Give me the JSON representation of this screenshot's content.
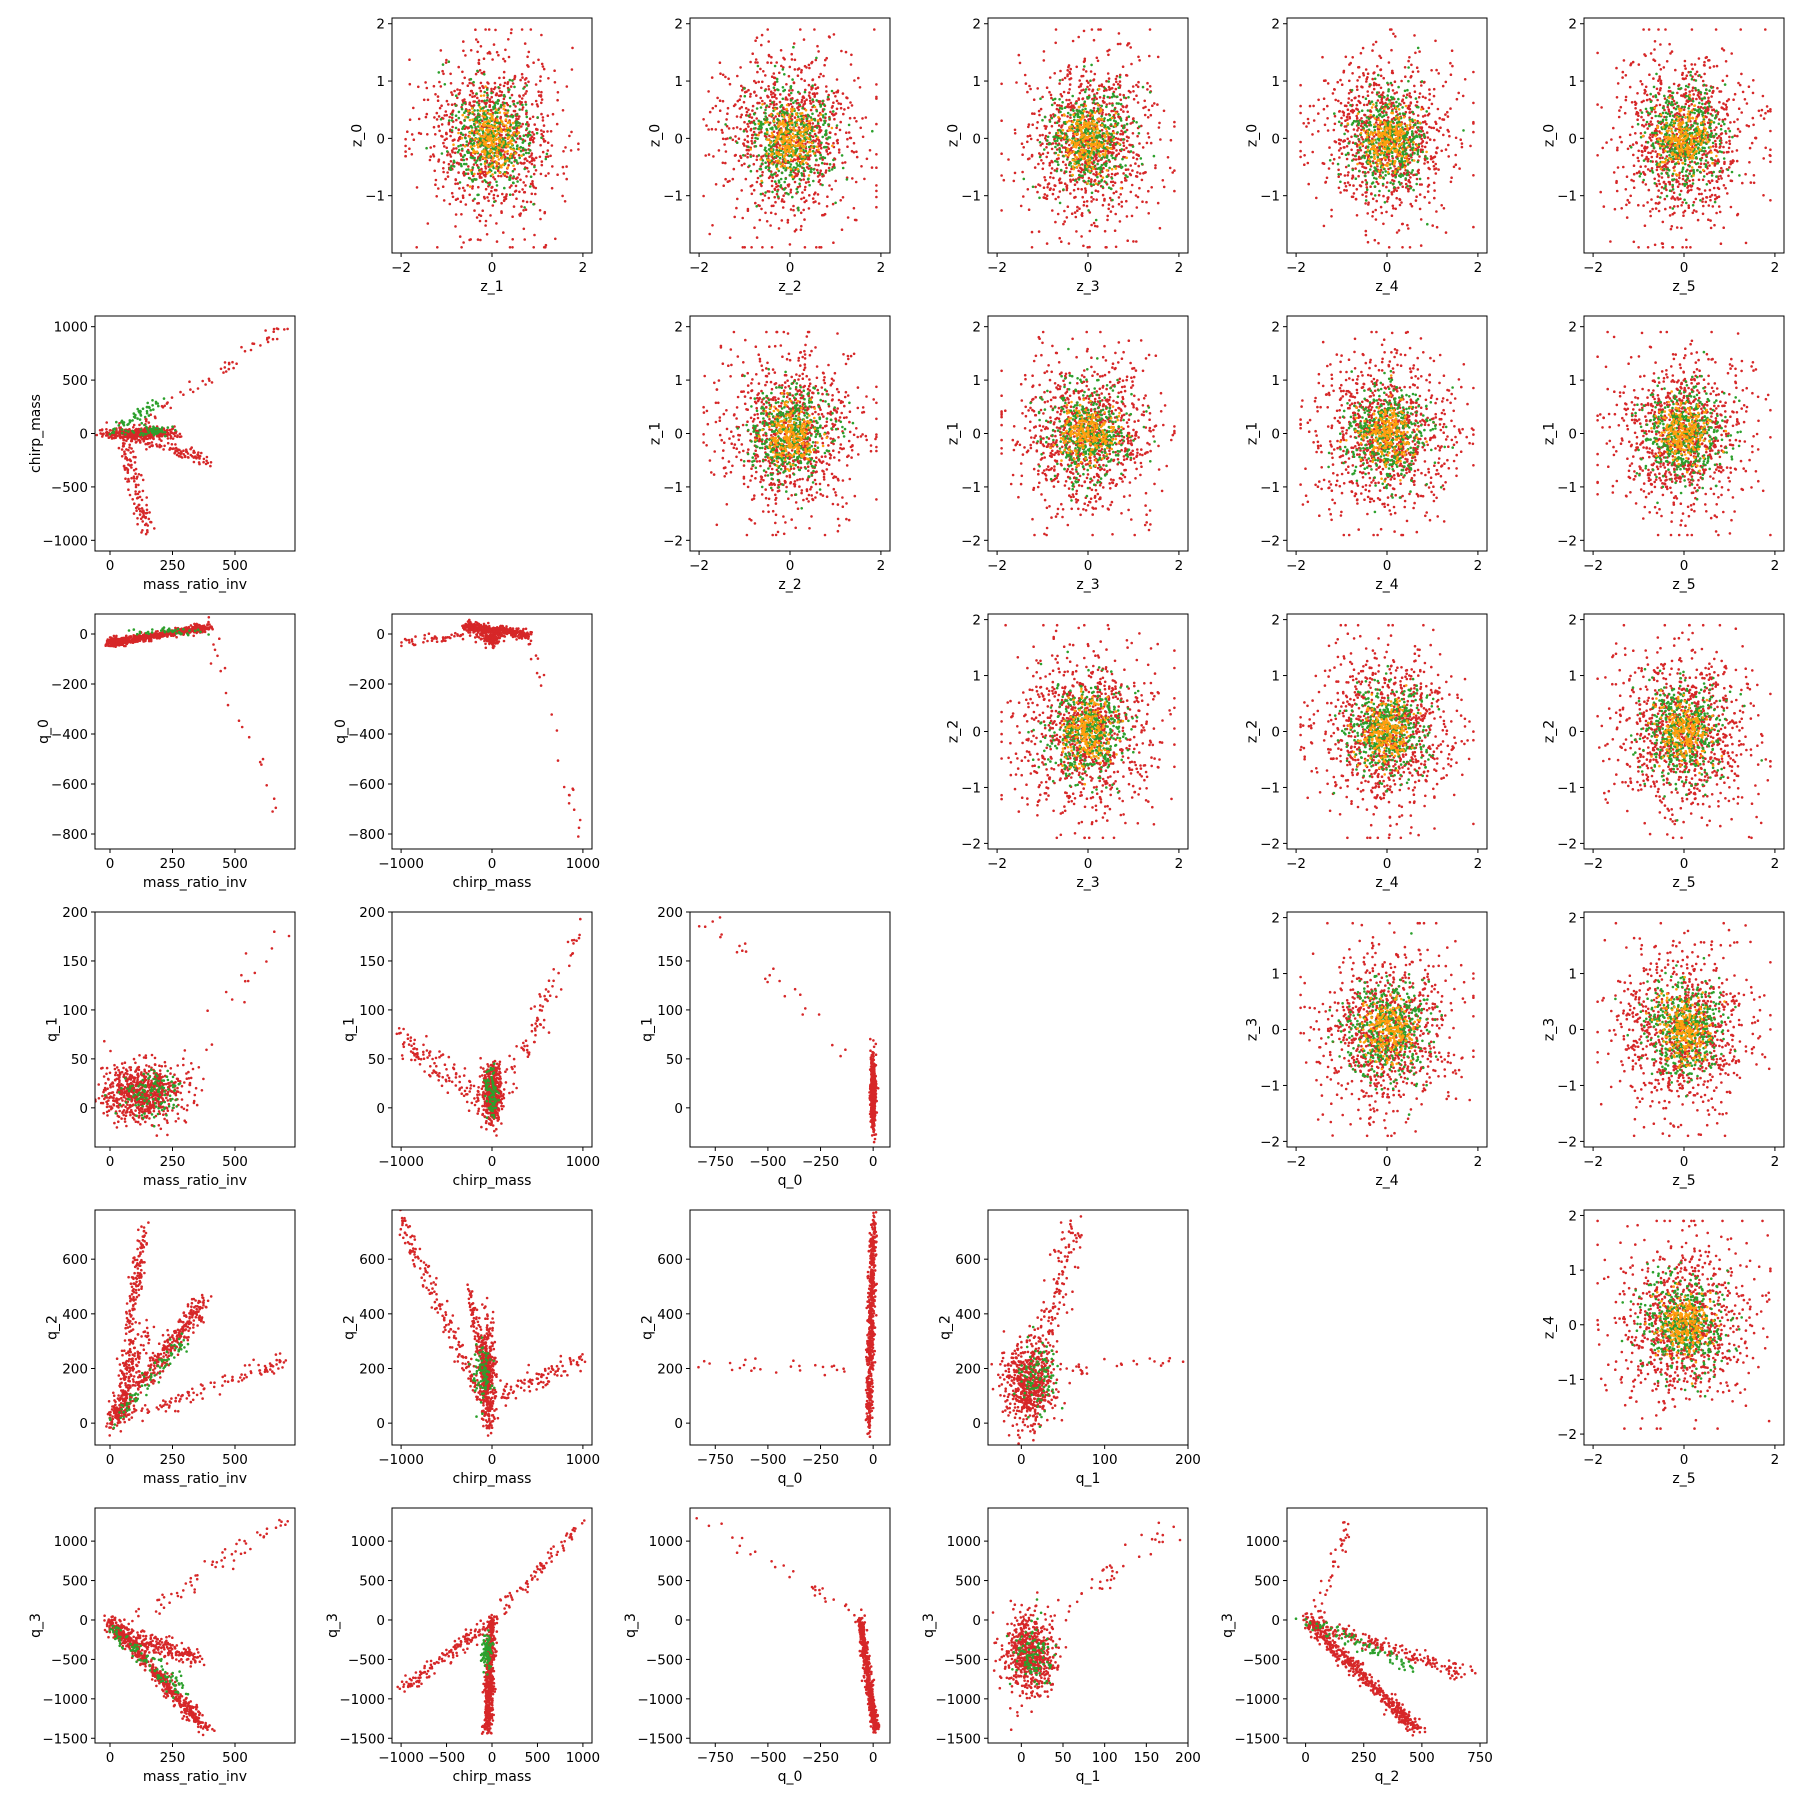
{
  "colors": {
    "red": "#d62728",
    "green": "#2ca02c",
    "orange": "#ff9f0e",
    "axes": "#000000",
    "background": "#ffffff"
  },
  "chart_data": {
    "type": "scatter",
    "layout": "pairplot-6x6",
    "series_colors": [
      "#d62728",
      "#2ca02c",
      "#ff9f0e"
    ],
    "panels": [
      {
        "row": 0,
        "col": 1,
        "xlabel": "z_1",
        "ylabel": "z_0",
        "pattern": "gauss",
        "xlim": [
          -2.2,
          2.2
        ],
        "ylim": [
          -2.0,
          2.1
        ],
        "xticks": [
          -2,
          0,
          2
        ],
        "yticks": [
          -1,
          0,
          1,
          2
        ]
      },
      {
        "row": 0,
        "col": 2,
        "xlabel": "z_2",
        "ylabel": "z_0",
        "pattern": "gauss",
        "xlim": [
          -2.2,
          2.2
        ],
        "ylim": [
          -2.0,
          2.1
        ],
        "xticks": [
          -2,
          0,
          2
        ],
        "yticks": [
          -1,
          0,
          1,
          2
        ]
      },
      {
        "row": 0,
        "col": 3,
        "xlabel": "z_3",
        "ylabel": "z_0",
        "pattern": "gauss",
        "xlim": [
          -2.2,
          2.2
        ],
        "ylim": [
          -2.0,
          2.1
        ],
        "xticks": [
          -2,
          0,
          2
        ],
        "yticks": [
          -1,
          0,
          1,
          2
        ]
      },
      {
        "row": 0,
        "col": 4,
        "xlabel": "z_4",
        "ylabel": "z_0",
        "pattern": "gauss",
        "xlim": [
          -2.2,
          2.2
        ],
        "ylim": [
          -2.0,
          2.1
        ],
        "xticks": [
          -2,
          0,
          2
        ],
        "yticks": [
          -1,
          0,
          1,
          2
        ]
      },
      {
        "row": 0,
        "col": 5,
        "xlabel": "z_5",
        "ylabel": "z_0",
        "pattern": "gauss",
        "xlim": [
          -2.2,
          2.2
        ],
        "ylim": [
          -2.0,
          2.1
        ],
        "xticks": [
          -2,
          0,
          2
        ],
        "yticks": [
          -1,
          0,
          1,
          2
        ]
      },
      {
        "row": 1,
        "col": 0,
        "xlabel": "mass_ratio_inv",
        "ylabel": "chirp_mass",
        "pattern": "p_mr_cm",
        "xlim": [
          -60,
          740
        ],
        "ylim": [
          -1100,
          1100
        ],
        "xticks": [
          0,
          250,
          500
        ],
        "yticks": [
          -1000,
          -500,
          0,
          500,
          1000
        ]
      },
      {
        "row": 1,
        "col": 2,
        "xlabel": "z_2",
        "ylabel": "z_1",
        "pattern": "gauss",
        "xlim": [
          -2.2,
          2.2
        ],
        "ylim": [
          -2.2,
          2.2
        ],
        "xticks": [
          -2,
          0,
          2
        ],
        "yticks": [
          -2,
          -1,
          0,
          1,
          2
        ]
      },
      {
        "row": 1,
        "col": 3,
        "xlabel": "z_3",
        "ylabel": "z_1",
        "pattern": "gauss",
        "xlim": [
          -2.2,
          2.2
        ],
        "ylim": [
          -2.2,
          2.2
        ],
        "xticks": [
          -2,
          0,
          2
        ],
        "yticks": [
          -2,
          -1,
          0,
          1,
          2
        ]
      },
      {
        "row": 1,
        "col": 4,
        "xlabel": "z_4",
        "ylabel": "z_1",
        "pattern": "gauss",
        "xlim": [
          -2.2,
          2.2
        ],
        "ylim": [
          -2.2,
          2.2
        ],
        "xticks": [
          -2,
          0,
          2
        ],
        "yticks": [
          -2,
          -1,
          0,
          1,
          2
        ]
      },
      {
        "row": 1,
        "col": 5,
        "xlabel": "z_5",
        "ylabel": "z_1",
        "pattern": "gauss",
        "xlim": [
          -2.2,
          2.2
        ],
        "ylim": [
          -2.2,
          2.2
        ],
        "xticks": [
          -2,
          0,
          2
        ],
        "yticks": [
          -2,
          -1,
          0,
          1,
          2
        ]
      },
      {
        "row": 2,
        "col": 0,
        "xlabel": "mass_ratio_inv",
        "ylabel": "q_0",
        "pattern": "p_mr_q0",
        "xlim": [
          -60,
          740
        ],
        "ylim": [
          -860,
          80
        ],
        "xticks": [
          0,
          250,
          500
        ],
        "yticks": [
          -800,
          -600,
          -400,
          -200,
          0
        ]
      },
      {
        "row": 2,
        "col": 1,
        "xlabel": "chirp_mass",
        "ylabel": "q_0",
        "pattern": "p_cm_q0",
        "xlim": [
          -1100,
          1100
        ],
        "ylim": [
          -860,
          80
        ],
        "xticks": [
          -1000,
          0,
          1000
        ],
        "yticks": [
          -800,
          -600,
          -400,
          -200,
          0
        ]
      },
      {
        "row": 2,
        "col": 3,
        "xlabel": "z_3",
        "ylabel": "z_2",
        "pattern": "gauss",
        "xlim": [
          -2.2,
          2.2
        ],
        "ylim": [
          -2.1,
          2.1
        ],
        "xticks": [
          -2,
          0,
          2
        ],
        "yticks": [
          -2,
          -1,
          0,
          1,
          2
        ]
      },
      {
        "row": 2,
        "col": 4,
        "xlabel": "z_4",
        "ylabel": "z_2",
        "pattern": "gauss",
        "xlim": [
          -2.2,
          2.2
        ],
        "ylim": [
          -2.1,
          2.1
        ],
        "xticks": [
          -2,
          0,
          2
        ],
        "yticks": [
          -2,
          -1,
          0,
          1,
          2
        ]
      },
      {
        "row": 2,
        "col": 5,
        "xlabel": "z_5",
        "ylabel": "z_2",
        "pattern": "gauss",
        "xlim": [
          -2.2,
          2.2
        ],
        "ylim": [
          -2.1,
          2.1
        ],
        "xticks": [
          -2,
          0,
          2
        ],
        "yticks": [
          -2,
          -1,
          0,
          1,
          2
        ]
      },
      {
        "row": 3,
        "col": 0,
        "xlabel": "mass_ratio_inv",
        "ylabel": "q_1",
        "pattern": "p_mr_q1",
        "xlim": [
          -60,
          740
        ],
        "ylim": [
          -40,
          200
        ],
        "xticks": [
          0,
          250,
          500
        ],
        "yticks": [
          0,
          50,
          100,
          150,
          200
        ]
      },
      {
        "row": 3,
        "col": 1,
        "xlabel": "chirp_mass",
        "ylabel": "q_1",
        "pattern": "p_cm_q1",
        "xlim": [
          -1100,
          1100
        ],
        "ylim": [
          -40,
          200
        ],
        "xticks": [
          -1000,
          0,
          1000
        ],
        "yticks": [
          0,
          50,
          100,
          150,
          200
        ]
      },
      {
        "row": 3,
        "col": 2,
        "xlabel": "q_0",
        "ylabel": "q_1",
        "pattern": "p_q0_q1",
        "xlim": [
          -870,
          80
        ],
        "ylim": [
          -40,
          200
        ],
        "xticks": [
          -750,
          -500,
          -250,
          0
        ],
        "yticks": [
          0,
          50,
          100,
          150,
          200
        ]
      },
      {
        "row": 3,
        "col": 4,
        "xlabel": "z_4",
        "ylabel": "z_3",
        "pattern": "gauss",
        "xlim": [
          -2.2,
          2.2
        ],
        "ylim": [
          -2.1,
          2.1
        ],
        "xticks": [
          -2,
          0,
          2
        ],
        "yticks": [
          -2,
          -1,
          0,
          1,
          2
        ]
      },
      {
        "row": 3,
        "col": 5,
        "xlabel": "z_5",
        "ylabel": "z_3",
        "pattern": "gauss",
        "xlim": [
          -2.2,
          2.2
        ],
        "ylim": [
          -2.1,
          2.1
        ],
        "xticks": [
          -2,
          0,
          2
        ],
        "yticks": [
          -2,
          -1,
          0,
          1,
          2
        ]
      },
      {
        "row": 4,
        "col": 0,
        "xlabel": "mass_ratio_inv",
        "ylabel": "q_2",
        "pattern": "p_mr_q2",
        "xlim": [
          -60,
          740
        ],
        "ylim": [
          -80,
          780
        ],
        "xticks": [
          0,
          250,
          500
        ],
        "yticks": [
          0,
          200,
          400,
          600
        ]
      },
      {
        "row": 4,
        "col": 1,
        "xlabel": "chirp_mass",
        "ylabel": "q_2",
        "pattern": "p_cm_q2",
        "xlim": [
          -1100,
          1100
        ],
        "ylim": [
          -80,
          780
        ],
        "xticks": [
          -1000,
          0,
          1000
        ],
        "yticks": [
          0,
          200,
          400,
          600
        ]
      },
      {
        "row": 4,
        "col": 2,
        "xlabel": "q_0",
        "ylabel": "q_2",
        "pattern": "p_q0_q2",
        "xlim": [
          -870,
          80
        ],
        "ylim": [
          -80,
          780
        ],
        "xticks": [
          -750,
          -500,
          -250,
          0
        ],
        "yticks": [
          0,
          200,
          400,
          600
        ]
      },
      {
        "row": 4,
        "col": 3,
        "xlabel": "q_1",
        "ylabel": "q_2",
        "pattern": "p_q1_q2",
        "xlim": [
          -40,
          200
        ],
        "ylim": [
          -80,
          780
        ],
        "xticks": [
          0,
          100,
          200
        ],
        "yticks": [
          0,
          200,
          400,
          600
        ]
      },
      {
        "row": 4,
        "col": 5,
        "xlabel": "z_5",
        "ylabel": "z_4",
        "pattern": "gauss",
        "xlim": [
          -2.2,
          2.2
        ],
        "ylim": [
          -2.2,
          2.1
        ],
        "xticks": [
          -2,
          0,
          2
        ],
        "yticks": [
          -2,
          -1,
          0,
          1,
          2
        ]
      },
      {
        "row": 5,
        "col": 0,
        "xlabel": "mass_ratio_inv",
        "ylabel": "q_3",
        "pattern": "p_mr_q3",
        "xlim": [
          -60,
          740
        ],
        "ylim": [
          -1560,
          1420
        ],
        "xticks": [
          0,
          250,
          500
        ],
        "yticks": [
          -1500,
          -1000,
          -500,
          0,
          500,
          1000
        ]
      },
      {
        "row": 5,
        "col": 1,
        "xlabel": "chirp_mass",
        "ylabel": "q_3",
        "pattern": "p_cm_q3",
        "xlim": [
          -1100,
          1100
        ],
        "ylim": [
          -1560,
          1420
        ],
        "xticks": [
          -1000,
          -500,
          0,
          500,
          1000
        ],
        "yticks": [
          -1500,
          -1000,
          -500,
          0,
          500,
          1000
        ]
      },
      {
        "row": 5,
        "col": 2,
        "xlabel": "q_0",
        "ylabel": "q_3",
        "pattern": "p_q0_q3",
        "xlim": [
          -870,
          80
        ],
        "ylim": [
          -1560,
          1420
        ],
        "xticks": [
          -750,
          -500,
          -250,
          0
        ],
        "yticks": [
          -1500,
          -1000,
          -500,
          0,
          500,
          1000
        ]
      },
      {
        "row": 5,
        "col": 3,
        "xlabel": "q_1",
        "ylabel": "q_3",
        "pattern": "p_q1_q3",
        "xlim": [
          -40,
          200
        ],
        "ylim": [
          -1560,
          1420
        ],
        "xticks": [
          0,
          50,
          100,
          150,
          200
        ],
        "yticks": [
          -1500,
          -1000,
          -500,
          0,
          500,
          1000
        ]
      },
      {
        "row": 5,
        "col": 4,
        "xlabel": "q_2",
        "ylabel": "q_3",
        "pattern": "p_q2_q3",
        "xlim": [
          -80,
          780
        ],
        "ylim": [
          -1560,
          1420
        ],
        "xticks": [
          0,
          250,
          500,
          750
        ],
        "yticks": [
          -1500,
          -1000,
          -500,
          0,
          500,
          1000
        ]
      }
    ]
  }
}
